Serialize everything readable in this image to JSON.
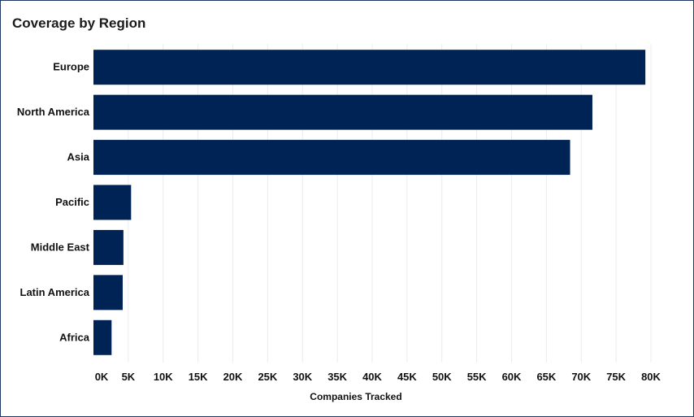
{
  "chart_data": {
    "type": "bar",
    "orientation": "horizontal",
    "title": "Coverage by Region",
    "xlabel": "Companies Tracked",
    "ylabel": "",
    "categories": [
      "Europe",
      "North America",
      "Asia",
      "Pacific",
      "Middle East",
      "Latin America",
      "Africa"
    ],
    "values": [
      79200,
      71600,
      68400,
      5400,
      4300,
      4200,
      2600
    ],
    "xlim": [
      0,
      80000
    ],
    "xticks": [
      0,
      5000,
      10000,
      15000,
      20000,
      25000,
      30000,
      35000,
      40000,
      45000,
      50000,
      55000,
      60000,
      65000,
      70000,
      75000,
      80000
    ],
    "xtick_labels": [
      "0K",
      "5K",
      "10K",
      "15K",
      "20K",
      "25K",
      "30K",
      "35K",
      "40K",
      "45K",
      "50K",
      "55K",
      "60K",
      "65K",
      "70K",
      "75K",
      "80K"
    ],
    "grid": "vertical",
    "bar_color": "#002356",
    "grid_color": "#ececec"
  }
}
